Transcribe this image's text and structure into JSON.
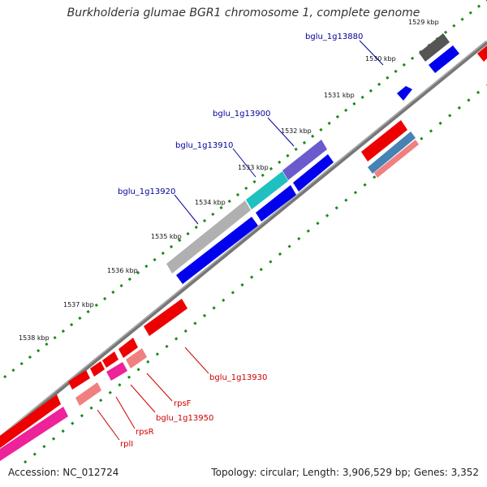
{
  "title": "Burkholderia glumae BGR1 chromosome 1, complete genome",
  "accession_label": "Accession: ",
  "accession": "NC_012724",
  "topology_text": "Topology: circular; Length: 3,906,529 bp; Genes: 3,352",
  "ticks": [
    {
      "label": "1529 kbp"
    },
    {
      "label": "1530 kbp"
    },
    {
      "label": "1531 kbp"
    },
    {
      "label": "1532 kbp"
    },
    {
      "label": "1533 kbp"
    },
    {
      "label": "1534 kbp"
    },
    {
      "label": "1535 kbp"
    },
    {
      "label": "1536 kbp"
    },
    {
      "label": "1537 kbp"
    },
    {
      "label": "1538 kbp"
    }
  ],
  "gene_labels": [
    {
      "text": "bglu_1g13880",
      "color": "#000099"
    },
    {
      "text": "bglu_1g13900",
      "color": "#000099"
    },
    {
      "text": "bglu_1g13910",
      "color": "#000099"
    },
    {
      "text": "bglu_1g13920",
      "color": "#000099"
    },
    {
      "text": "bglu_1g13930",
      "color": "#cc0000"
    },
    {
      "text": "rpsF",
      "color": "#cc0000"
    },
    {
      "text": "bglu_1g13950",
      "color": "#cc0000"
    },
    {
      "text": "rpsR",
      "color": "#cc0000"
    },
    {
      "text": "rplI",
      "color": "#cc0000"
    }
  ],
  "colors": {
    "backbone": "#808080",
    "tick_green": "#1a8a1a",
    "forward_cds": "#0000ee",
    "reverse_cds": "#ee0000",
    "pseudo_grey": "#aaaaaa",
    "dark_grey": "#555555",
    "cyan": "#20c0c0",
    "purple": "#6a5acd",
    "pink": "#f08080",
    "magenta": "#ee2299",
    "steel": "#4682b4"
  }
}
